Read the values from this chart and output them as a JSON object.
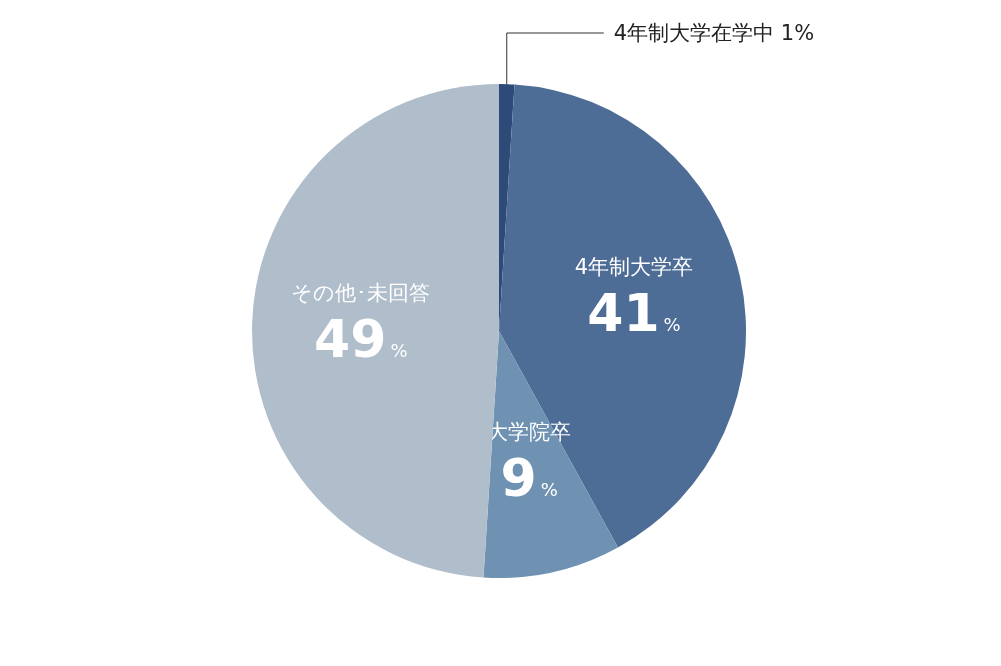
{
  "chart_data": {
    "type": "pie",
    "categories": [
      "4年制大学在学中",
      "4年制大学卒",
      "大学院卒",
      "その他･未回答"
    ],
    "values": [
      1,
      41,
      9,
      49
    ],
    "value_labels": [
      "1%",
      "41%",
      "9%",
      "49%"
    ],
    "colors": [
      "#2e4a78",
      "#4d6c96",
      "#7092b2",
      "#b0bdcb"
    ],
    "legend": false
  }
}
